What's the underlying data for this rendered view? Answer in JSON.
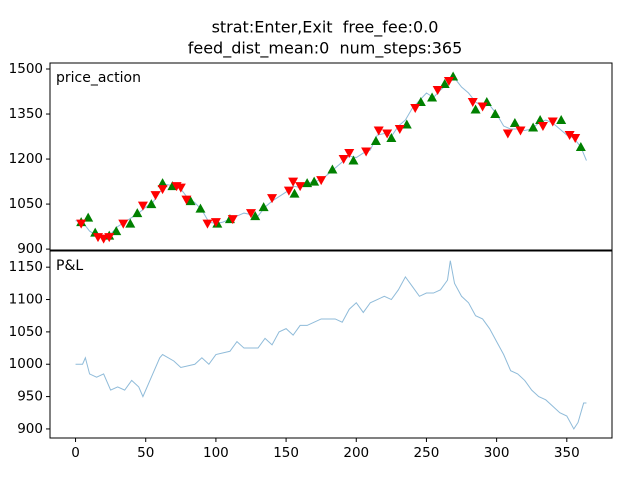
{
  "chart_data": [
    {
      "type": "line",
      "title": "strat:Enter,Exit  free_fee:0.0",
      "subtitle": "feed_dist_mean:0  num_steps:365",
      "annotation": "price_action",
      "color": "#8fbbd9",
      "x": [
        0,
        5,
        10,
        15,
        20,
        25,
        30,
        35,
        40,
        45,
        50,
        55,
        60,
        65,
        70,
        75,
        80,
        85,
        90,
        95,
        100,
        105,
        110,
        115,
        120,
        125,
        130,
        135,
        140,
        145,
        150,
        155,
        160,
        165,
        170,
        175,
        180,
        185,
        190,
        195,
        200,
        205,
        210,
        215,
        220,
        225,
        230,
        235,
        240,
        245,
        250,
        255,
        260,
        265,
        270,
        275,
        280,
        285,
        290,
        295,
        300,
        305,
        310,
        315,
        320,
        325,
        330,
        335,
        340,
        345,
        350,
        355,
        360,
        364
      ],
      "values": [
        995,
        990,
        960,
        945,
        940,
        950,
        975,
        990,
        1005,
        1020,
        1040,
        1055,
        1090,
        1115,
        1110,
        1100,
        1070,
        1055,
        1030,
        990,
        985,
        990,
        1000,
        1010,
        1020,
        1015,
        1010,
        1040,
        1060,
        1075,
        1090,
        1110,
        1105,
        1120,
        1125,
        1130,
        1150,
        1170,
        1190,
        1210,
        1205,
        1220,
        1230,
        1280,
        1285,
        1275,
        1310,
        1330,
        1370,
        1395,
        1420,
        1405,
        1430,
        1450,
        1470,
        1440,
        1420,
        1390,
        1375,
        1380,
        1350,
        1310,
        1300,
        1300,
        1295,
        1300,
        1320,
        1330,
        1320,
        1300,
        1280,
        1270,
        1240,
        1195
      ],
      "buy_markers": {
        "color": "green",
        "x": [
          4,
          9,
          14,
          24,
          29,
          39,
          44,
          54,
          62,
          69,
          82,
          89,
          101,
          110,
          128,
          134,
          156,
          165,
          170,
          183,
          198,
          214,
          225,
          236,
          246,
          254,
          263,
          269,
          285,
          293,
          299,
          313,
          326,
          331,
          346,
          360
        ],
        "values": [
          990,
          1005,
          955,
          945,
          960,
          985,
          1020,
          1050,
          1120,
          1110,
          1060,
          1035,
          985,
          1000,
          1010,
          1040,
          1085,
          1120,
          1125,
          1165,
          1195,
          1260,
          1270,
          1315,
          1390,
          1405,
          1450,
          1475,
          1365,
          1390,
          1350,
          1320,
          1305,
          1330,
          1330,
          1240
        ]
      },
      "sell_markers": {
        "color": "red",
        "x": [
          4,
          16,
          20,
          24,
          34,
          48,
          57,
          62,
          72,
          75,
          79,
          94,
          100,
          112,
          125,
          140,
          152,
          155,
          160,
          175,
          191,
          195,
          207,
          216,
          222,
          231,
          242,
          258,
          266,
          283,
          290,
          308,
          317,
          333,
          340,
          352,
          356
        ],
        "values": [
          985,
          940,
          935,
          940,
          985,
          1045,
          1080,
          1100,
          1110,
          1105,
          1065,
          985,
          990,
          1000,
          1020,
          1070,
          1095,
          1125,
          1110,
          1130,
          1200,
          1220,
          1225,
          1295,
          1285,
          1300,
          1370,
          1430,
          1460,
          1390,
          1375,
          1285,
          1295,
          1310,
          1325,
          1280,
          1270
        ]
      },
      "xlim": [
        -18.2,
        382.2
      ],
      "ylim": [
        897,
        1520
      ],
      "yticks": [
        900,
        1050,
        1200,
        1350,
        1500
      ]
    },
    {
      "type": "line",
      "annotation": "P&L",
      "color": "#8fbbd9",
      "x": [
        0,
        5,
        7,
        10,
        15,
        20,
        25,
        30,
        35,
        40,
        45,
        48,
        55,
        60,
        62,
        70,
        75,
        85,
        90,
        95,
        100,
        110,
        115,
        120,
        130,
        135,
        140,
        145,
        150,
        155,
        160,
        165,
        170,
        175,
        185,
        190,
        195,
        200,
        205,
        210,
        215,
        220,
        225,
        230,
        235,
        240,
        245,
        250,
        255,
        260,
        265,
        267,
        270,
        275,
        280,
        285,
        290,
        295,
        300,
        305,
        310,
        315,
        320,
        325,
        330,
        335,
        340,
        345,
        350,
        355,
        358,
        362,
        364
      ],
      "values": [
        1000,
        1000,
        1010,
        985,
        980,
        985,
        960,
        965,
        960,
        975,
        965,
        950,
        985,
        1010,
        1015,
        1005,
        995,
        1000,
        1010,
        1000,
        1015,
        1020,
        1035,
        1025,
        1025,
        1040,
        1030,
        1050,
        1055,
        1045,
        1060,
        1060,
        1065,
        1070,
        1070,
        1065,
        1085,
        1095,
        1080,
        1095,
        1100,
        1105,
        1100,
        1115,
        1135,
        1120,
        1105,
        1110,
        1110,
        1115,
        1130,
        1160,
        1125,
        1105,
        1095,
        1075,
        1070,
        1055,
        1035,
        1015,
        990,
        985,
        975,
        960,
        950,
        945,
        935,
        925,
        920,
        900,
        910,
        940,
        940
      ],
      "xlim": [
        -18.2,
        382.2
      ],
      "xticks": [
        0,
        50,
        100,
        150,
        200,
        250,
        300,
        350
      ],
      "ylim": [
        886,
        1175
      ],
      "yticks": [
        900,
        950,
        1000,
        1050,
        1100,
        1150
      ]
    }
  ]
}
